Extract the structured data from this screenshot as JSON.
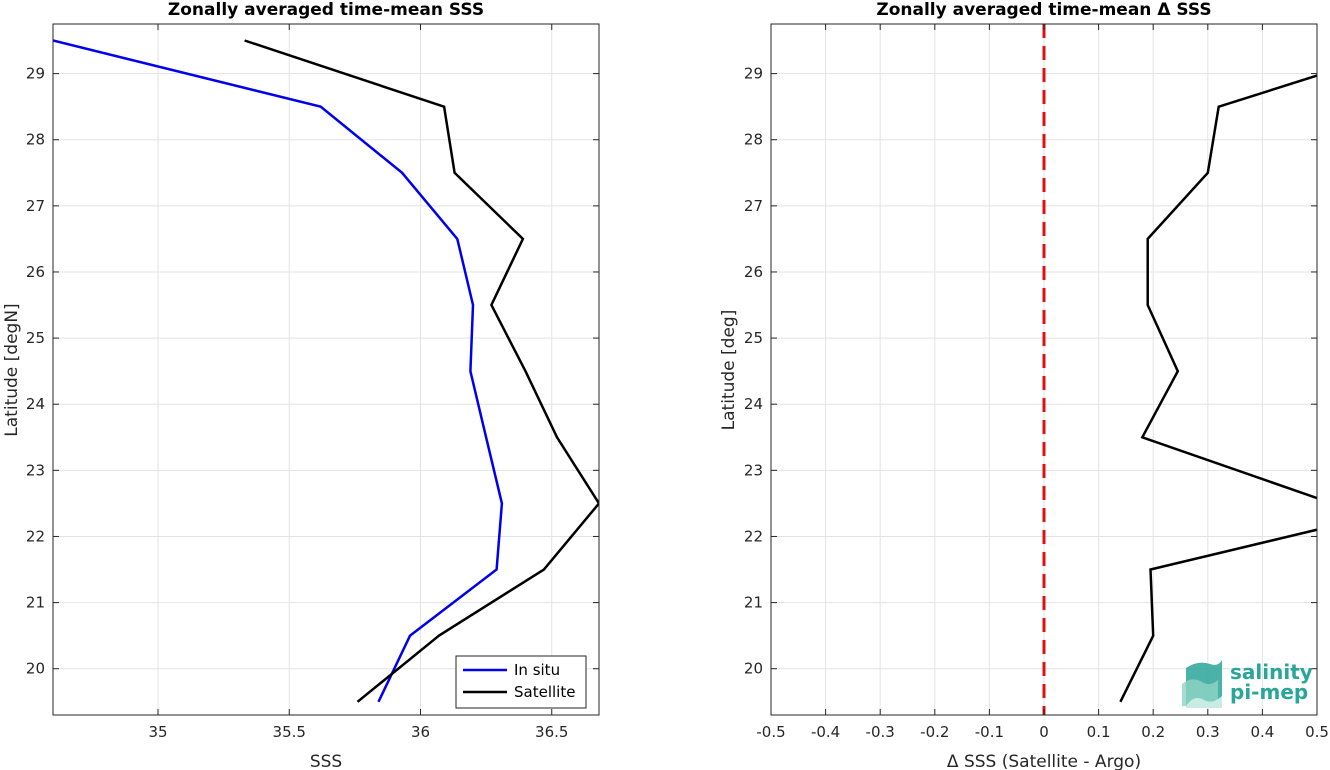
{
  "colors": {
    "in_situ": "#0000ee",
    "satellite": "#000000",
    "zero_line": "#dd1111",
    "logo_teal": "#2aa59a"
  },
  "logo": {
    "line1": "salinity",
    "line2": "pi-mep"
  },
  "chart_data": [
    {
      "type": "line",
      "title": "Zonally averaged time-mean SSS",
      "xlabel": "SSS",
      "ylabel": "Latitude [degN]",
      "xlim": [
        34.6,
        36.68
      ],
      "ylim": [
        19.3,
        29.75
      ],
      "xticks": [
        35,
        35.5,
        36,
        36.5
      ],
      "xtick_labels": [
        "35",
        "35.5",
        "36",
        "36.5"
      ],
      "yticks": [
        20,
        21,
        22,
        23,
        24,
        25,
        26,
        27,
        28,
        29
      ],
      "ytick_labels": [
        "20",
        "21",
        "22",
        "23",
        "24",
        "25",
        "26",
        "27",
        "28",
        "29"
      ],
      "grid": true,
      "legend_position": "bottom-right",
      "series": [
        {
          "name": "In situ",
          "points": [
            [
              35.84,
              19.5
            ],
            [
              35.96,
              20.5
            ],
            [
              36.29,
              21.5
            ],
            [
              36.31,
              22.5
            ],
            [
              36.25,
              23.5
            ],
            [
              36.19,
              24.5
            ],
            [
              36.2,
              25.5
            ],
            [
              36.14,
              26.5
            ],
            [
              35.93,
              27.5
            ],
            [
              35.62,
              28.5
            ],
            [
              34.6,
              29.5
            ]
          ]
        },
        {
          "name": "Satellite",
          "points": [
            [
              35.76,
              19.5
            ],
            [
              36.07,
              20.5
            ],
            [
              36.47,
              21.5
            ],
            [
              36.68,
              22.5
            ],
            [
              36.52,
              23.5
            ],
            [
              36.4,
              24.5
            ],
            [
              36.27,
              25.5
            ],
            [
              36.39,
              26.5
            ],
            [
              36.13,
              27.5
            ],
            [
              36.09,
              28.5
            ],
            [
              35.33,
              29.5
            ]
          ]
        }
      ]
    },
    {
      "type": "line",
      "title": "Zonally averaged time-mean Δ SSS",
      "xlabel": "Δ SSS (Satellite - Argo)",
      "ylabel": "Latitude [deg]",
      "xlim": [
        -0.5,
        0.5
      ],
      "ylim": [
        19.3,
        29.75
      ],
      "xticks": [
        -0.5,
        -0.4,
        -0.3,
        -0.2,
        -0.1,
        0,
        0.1,
        0.2,
        0.3,
        0.4,
        0.5
      ],
      "xtick_labels": [
        "-0.5",
        "-0.4",
        "-0.3",
        "-0.2",
        "-0.1",
        "0",
        "0.1",
        "0.2",
        "0.3",
        "0.4",
        "0.5"
      ],
      "yticks": [
        20,
        21,
        22,
        23,
        24,
        25,
        26,
        27,
        28,
        29
      ],
      "ytick_labels": [
        "20",
        "21",
        "22",
        "23",
        "24",
        "25",
        "26",
        "27",
        "28",
        "29"
      ],
      "grid": true,
      "reference_line": {
        "x": 0,
        "style": "dashed"
      },
      "series": [
        {
          "points": [
            [
              0.14,
              19.5
            ],
            [
              0.2,
              20.5
            ],
            [
              0.195,
              21.5
            ],
            [
              0.6,
              22.3
            ],
            [
              0.5,
              22.58
            ],
            [
              0.18,
              23.5
            ],
            [
              0.245,
              24.5
            ],
            [
              0.19,
              25.5
            ],
            [
              0.19,
              26.5
            ],
            [
              0.3,
              27.5
            ],
            [
              0.32,
              28.5
            ],
            [
              0.5,
              28.97
            ],
            [
              0.7,
              29.5
            ]
          ]
        }
      ]
    }
  ]
}
